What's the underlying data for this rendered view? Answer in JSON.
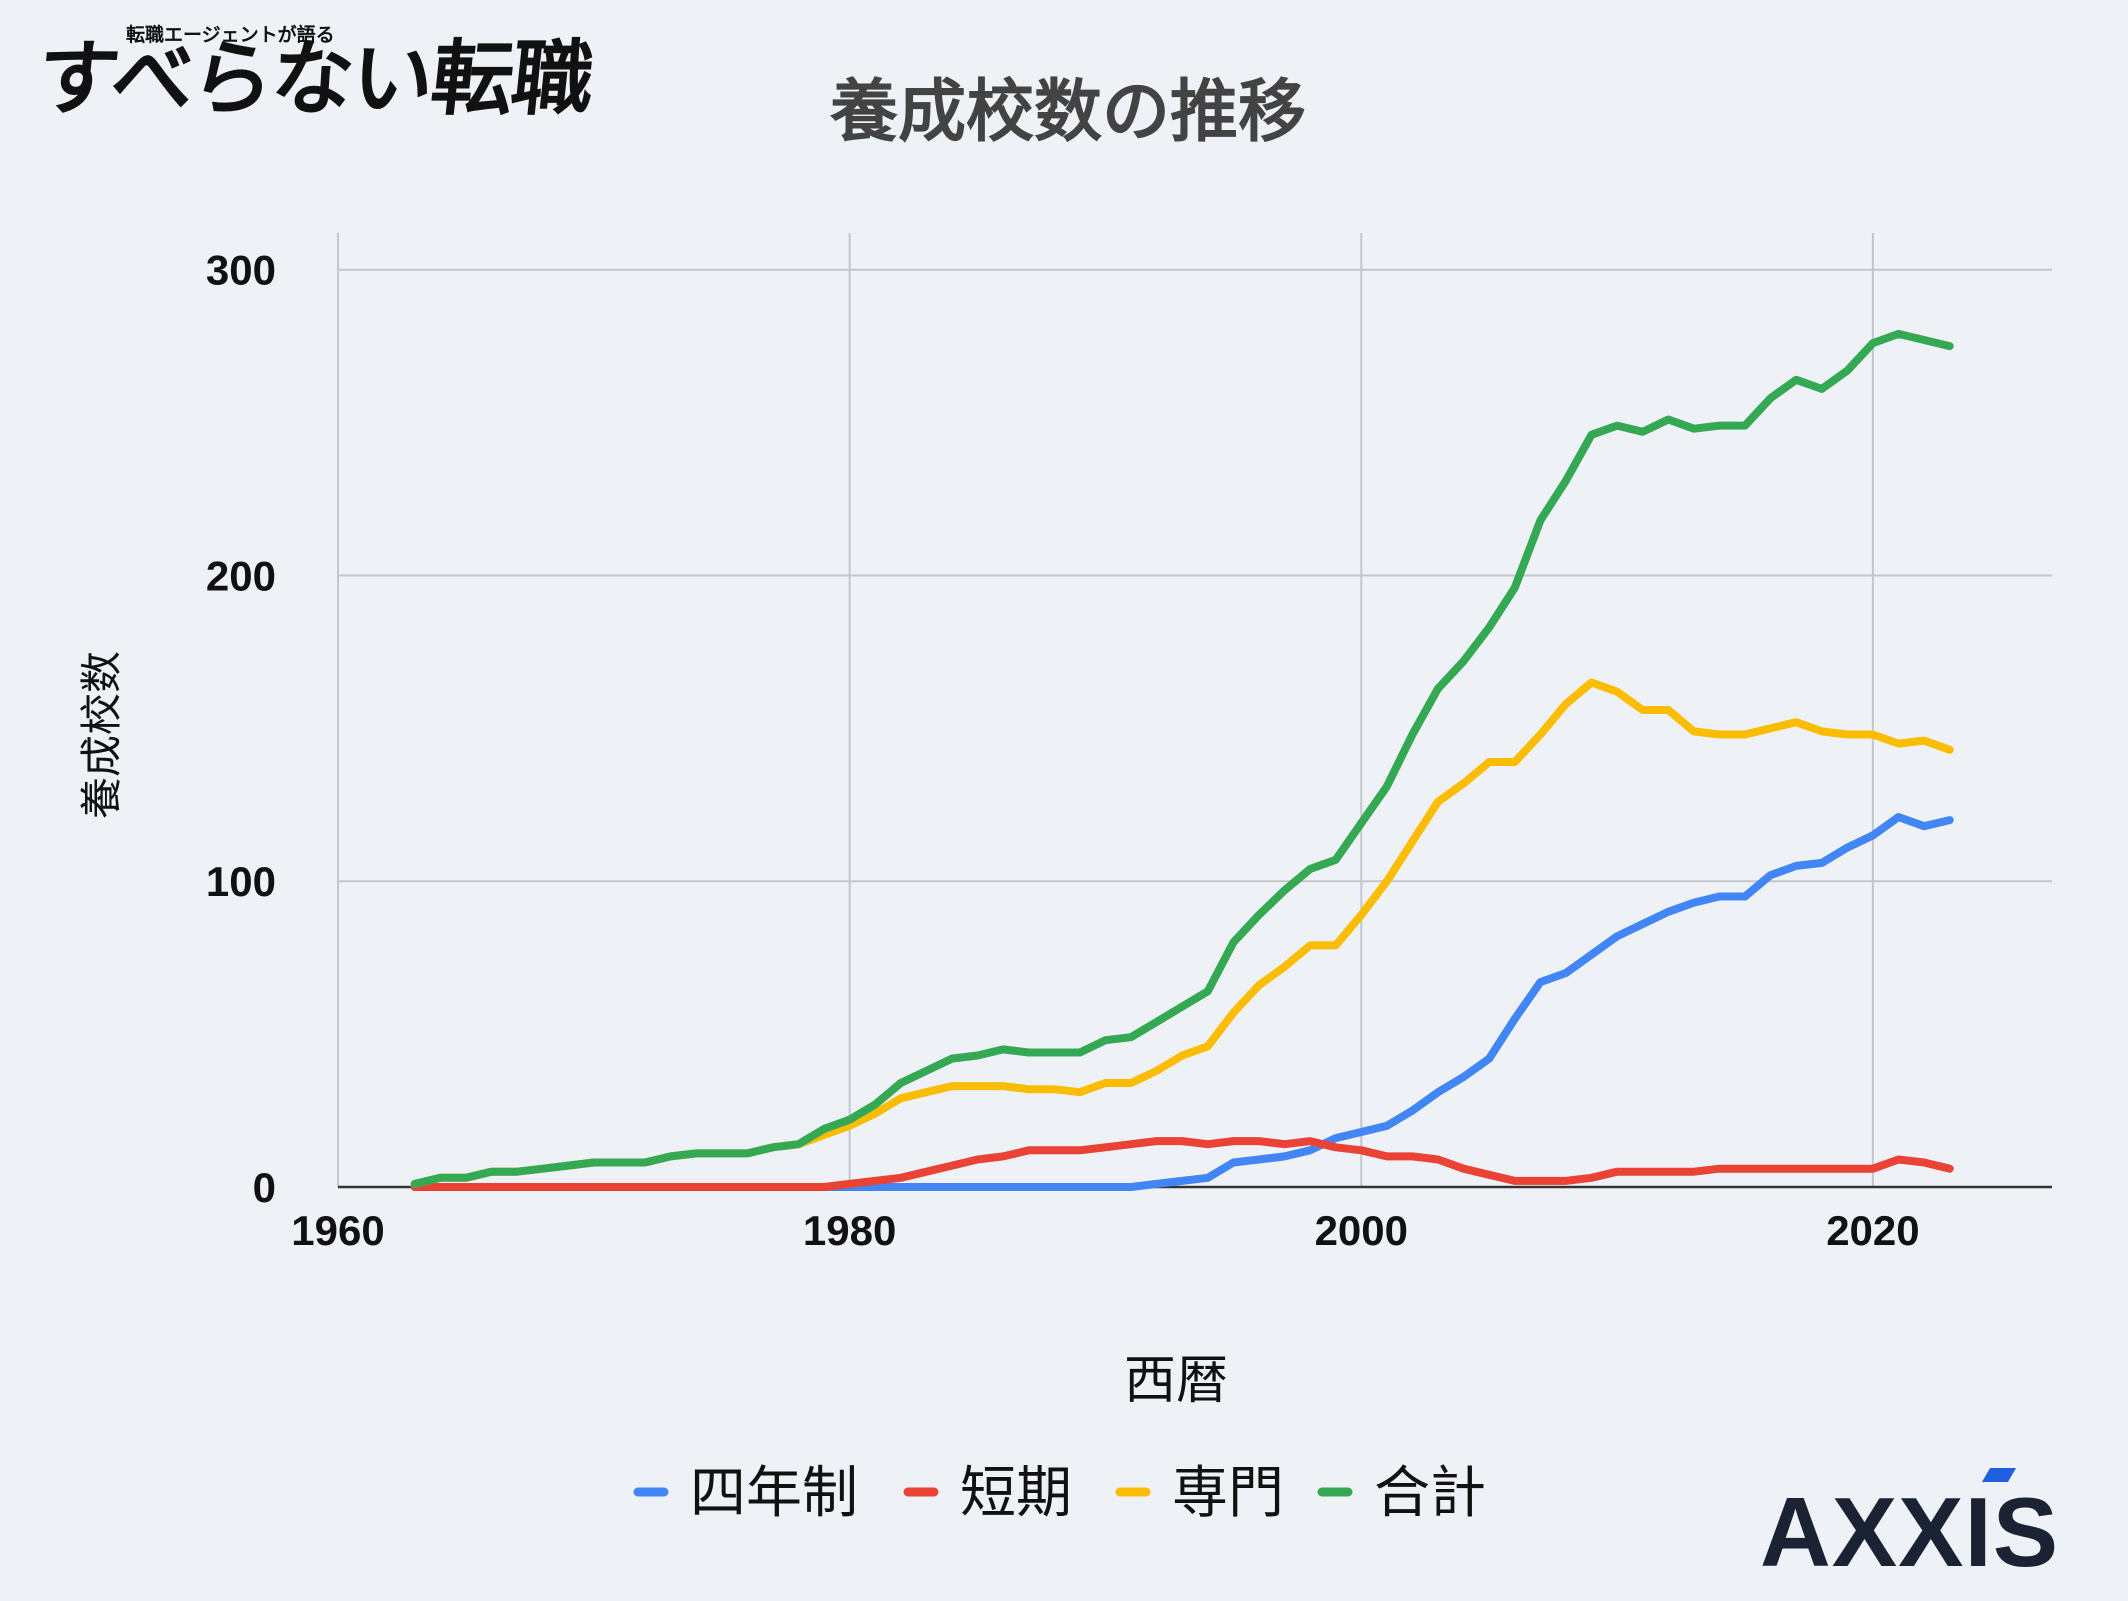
{
  "branding": {
    "left_logo_sub": "転職エージェントが語る",
    "left_logo_main": "すべらない転職",
    "right_logo": "AXXIS",
    "right_logo_accent_color": "#1f5fe0"
  },
  "chart_data": {
    "type": "line",
    "title": "養成校数の推移",
    "xlabel": "西暦",
    "ylabel": "養成校数",
    "xlim": [
      1960,
      2027
    ],
    "ylim": [
      0,
      312
    ],
    "xticks": [
      1960,
      1980,
      2000,
      2020
    ],
    "yticks": [
      0,
      100,
      200,
      300
    ],
    "grid": true,
    "legend_position": "bottom",
    "x": [
      1963,
      1964,
      1965,
      1966,
      1967,
      1968,
      1969,
      1970,
      1971,
      1972,
      1973,
      1974,
      1975,
      1976,
      1977,
      1978,
      1979,
      1980,
      1981,
      1982,
      1983,
      1984,
      1985,
      1986,
      1987,
      1988,
      1989,
      1990,
      1991,
      1992,
      1993,
      1994,
      1995,
      1996,
      1997,
      1998,
      1999,
      2000,
      2001,
      2002,
      2003,
      2004,
      2005,
      2006,
      2007,
      2008,
      2009,
      2010,
      2011,
      2012,
      2013,
      2014,
      2015,
      2016,
      2017,
      2018,
      2019,
      2020,
      2021,
      2022,
      2023
    ],
    "series": [
      {
        "name": "四年制",
        "color": "#4285f4",
        "values": [
          0,
          0,
          0,
          0,
          0,
          0,
          0,
          0,
          0,
          0,
          0,
          0,
          0,
          0,
          0,
          0,
          0,
          0,
          0,
          0,
          0,
          0,
          0,
          0,
          0,
          0,
          0,
          0,
          0,
          1,
          2,
          3,
          8,
          9,
          10,
          12,
          16,
          18,
          20,
          25,
          31,
          36,
          42,
          55,
          67,
          70,
          76,
          82,
          86,
          90,
          93,
          95,
          95,
          102,
          105,
          106,
          111,
          115,
          121,
          118,
          120
        ]
      },
      {
        "name": "短期",
        "color": "#ea4335",
        "values": [
          0,
          0,
          0,
          0,
          0,
          0,
          0,
          0,
          0,
          0,
          0,
          0,
          0,
          0,
          0,
          0,
          0,
          1,
          2,
          3,
          5,
          7,
          9,
          10,
          12,
          12,
          12,
          13,
          14,
          15,
          15,
          14,
          15,
          15,
          14,
          15,
          13,
          12,
          10,
          10,
          9,
          6,
          4,
          2,
          2,
          2,
          3,
          5,
          5,
          5,
          5,
          6,
          6,
          6,
          6,
          6,
          6,
          6,
          9,
          8,
          6
        ]
      },
      {
        "name": "専門",
        "color": "#fbbc04",
        "values": [
          1,
          3,
          3,
          5,
          5,
          6,
          7,
          8,
          8,
          8,
          10,
          11,
          11,
          11,
          13,
          14,
          17,
          20,
          24,
          29,
          31,
          33,
          33,
          33,
          32,
          32,
          31,
          34,
          34,
          38,
          43,
          46,
          57,
          66,
          72,
          79,
          79,
          89,
          100,
          113,
          126,
          132,
          139,
          139,
          148,
          158,
          165,
          162,
          156,
          156,
          149,
          148,
          148,
          150,
          152,
          149,
          148,
          148,
          145,
          146,
          143
        ]
      },
      {
        "name": "合計",
        "color": "#34a853",
        "values": [
          1,
          3,
          3,
          5,
          5,
          6,
          7,
          8,
          8,
          8,
          10,
          11,
          11,
          11,
          13,
          14,
          19,
          22,
          27,
          34,
          38,
          42,
          43,
          45,
          44,
          44,
          44,
          48,
          49,
          54,
          59,
          64,
          80,
          89,
          97,
          104,
          107,
          119,
          131,
          148,
          163,
          172,
          183,
          196,
          218,
          231,
          246,
          249,
          247,
          251,
          248,
          249,
          249,
          258,
          264,
          261,
          267,
          276,
          279,
          277,
          275
        ]
      }
    ]
  }
}
